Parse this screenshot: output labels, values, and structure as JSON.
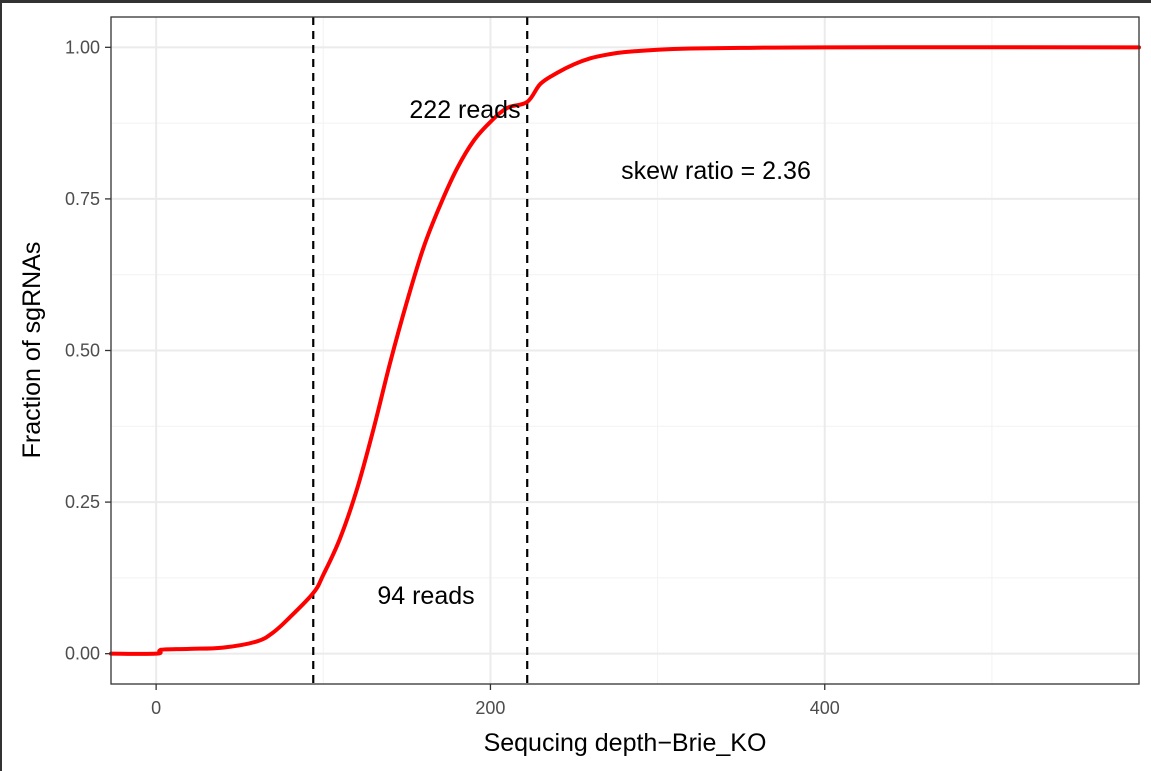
{
  "chart_data": {
    "type": "line",
    "title": "",
    "xlabel": "Sequcing depth−Brie_KO",
    "ylabel": "Fraction of sgRNAs",
    "xlim": [
      -27,
      588
    ],
    "ylim": [
      -0.05,
      1.05
    ],
    "x_ticks": [
      0,
      200,
      400
    ],
    "x_tick_labels": [
      "0",
      "200",
      "400"
    ],
    "y_ticks": [
      0,
      0.25,
      0.5,
      0.75,
      1.0
    ],
    "y_tick_labels": [
      "0.00",
      "0.25",
      "0.50",
      "0.75",
      "1.00"
    ],
    "grid": true,
    "legend": "none",
    "series": [
      {
        "color": "#ff0000",
        "x": [
          -27,
          0,
          2,
          5,
          20,
          40,
          60,
          70,
          80,
          94,
          100,
          110,
          120,
          130,
          140,
          150,
          160,
          170,
          180,
          190,
          200,
          210,
          222,
          230,
          240,
          250,
          260,
          270,
          280,
          300,
          320,
          350,
          400,
          588
        ],
        "y": [
          0,
          0,
          0.005,
          0.007,
          0.008,
          0.01,
          0.02,
          0.035,
          0.06,
          0.1,
          0.13,
          0.19,
          0.27,
          0.37,
          0.48,
          0.58,
          0.67,
          0.74,
          0.8,
          0.846,
          0.877,
          0.9,
          0.91,
          0.94,
          0.958,
          0.972,
          0.982,
          0.988,
          0.992,
          0.996,
          0.998,
          0.999,
          1.0,
          1.0
        ]
      }
    ],
    "vlines": [
      {
        "x": 94,
        "style": "dashed",
        "color": "#000000"
      },
      {
        "x": 222,
        "style": "dashed",
        "color": "#000000"
      }
    ],
    "annotations": [
      {
        "text": "222 reads",
        "x": 165,
        "y": 0.9
      },
      {
        "text": "94 reads",
        "x": 160,
        "y": 0.1
      },
      {
        "text": "skew ratio = 2.36",
        "x": 340,
        "y": 0.8
      }
    ]
  }
}
